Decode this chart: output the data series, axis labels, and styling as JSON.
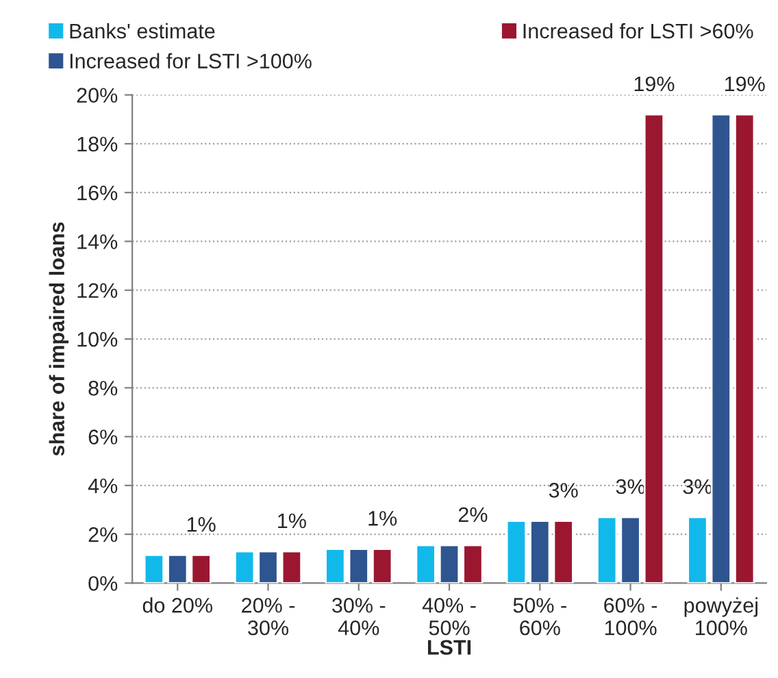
{
  "chart_data": {
    "type": "bar",
    "xlabel": "LSTI",
    "ylabel": "share of impaired loans",
    "categories": [
      "do 20%",
      "20% -\n30%",
      "30% -\n40%",
      "40% -\n50%",
      "50% -\n60%",
      "60% -\n100%",
      "powyżej\n100%"
    ],
    "series": [
      {
        "name": "Banks' estimate",
        "color": "#11b9eb",
        "values": [
          1.15,
          1.3,
          1.4,
          1.55,
          2.55,
          2.7,
          2.7
        ],
        "value_labels": [
          null,
          null,
          null,
          null,
          null,
          null,
          "3%"
        ]
      },
      {
        "name": "Increased for LSTI >100%",
        "color": "#2e5590",
        "values": [
          1.15,
          1.3,
          1.4,
          1.55,
          2.55,
          2.7,
          19.2
        ],
        "value_labels": [
          null,
          null,
          null,
          null,
          null,
          "3%",
          null
        ]
      },
      {
        "name": "Increased for LSTI >60%",
        "color": "#9b1730",
        "values": [
          1.15,
          1.3,
          1.4,
          1.55,
          2.55,
          19.2,
          19.2
        ],
        "value_labels": [
          "1%",
          "1%",
          "1%",
          "2%",
          "3%",
          "19%",
          "19%"
        ]
      }
    ],
    "ylim": [
      0,
      20
    ],
    "yticks": [
      {
        "value": 0,
        "label": "0%"
      },
      {
        "value": 2,
        "label": "2%"
      },
      {
        "value": 4,
        "label": "4%"
      },
      {
        "value": 6,
        "label": "6%"
      },
      {
        "value": 8,
        "label": "8%"
      },
      {
        "value": 10,
        "label": "10%"
      },
      {
        "value": 12,
        "label": "12%"
      },
      {
        "value": 14,
        "label": "14%"
      },
      {
        "value": 16,
        "label": "16%"
      },
      {
        "value": 18,
        "label": "18%"
      },
      {
        "value": 20,
        "label": "20%"
      }
    ],
    "grid": "y",
    "legend": "top"
  }
}
